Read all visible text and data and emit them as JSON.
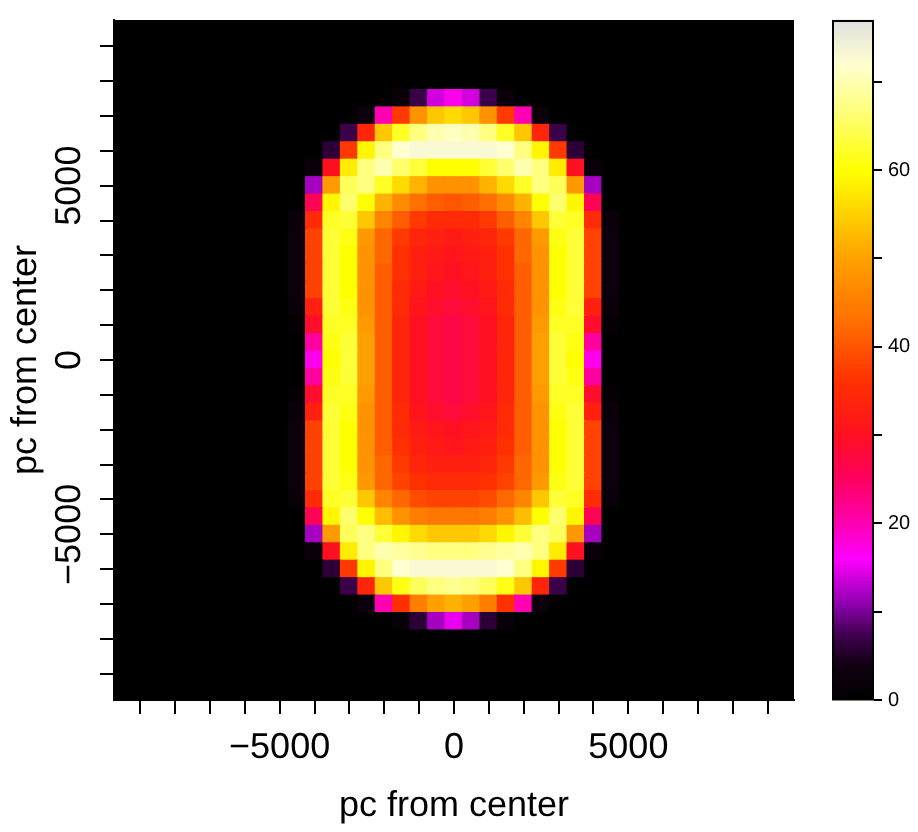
{
  "chart_data": {
    "type": "heatmap",
    "xlabel": "pc from center",
    "ylabel": "pc from center",
    "categories": [
      null,
      null,
      null,
      null,
      null,
      null,
      null,
      null,
      null,
      "−5000",
      null,
      null,
      null,
      null,
      null,
      null,
      null,
      null,
      null,
      "0",
      null,
      null,
      null,
      null,
      null,
      null,
      null,
      null,
      null,
      "5000",
      null,
      null,
      null,
      null,
      null,
      null,
      null,
      null,
      null
    ],
    "y_categories": [
      null,
      null,
      null,
      null,
      null,
      null,
      null,
      null,
      null,
      "5000",
      null,
      null,
      null,
      null,
      null,
      null,
      null,
      null,
      null,
      "0",
      null,
      null,
      null,
      null,
      null,
      null,
      null,
      null,
      null,
      "−5000",
      null,
      null,
      null,
      null,
      null,
      null,
      null,
      null,
      null
    ],
    "clim": [
      0,
      77
    ],
    "cticks": [
      0,
      {
        "value": 10,
        "label": null
      },
      20,
      {
        "value": 30,
        "label": null
      },
      40,
      {
        "value": 50,
        "label": null
      },
      60,
      {
        "value": 70,
        "label": null
      }
    ],
    "cells": [
      [
        0,
        0,
        0,
        0,
        0,
        0,
        0,
        0,
        0,
        0,
        0,
        0,
        0,
        0,
        0,
        0,
        0,
        0,
        0,
        0,
        0,
        0,
        0,
        0,
        0,
        0,
        0,
        0,
        0,
        0,
        0,
        0,
        0,
        0,
        0,
        0,
        0,
        0,
        0
      ],
      [
        0,
        0,
        0,
        0,
        0,
        0,
        0,
        0,
        0,
        0,
        0,
        0,
        0,
        0,
        0,
        0,
        0,
        0,
        0,
        0,
        0,
        0,
        0,
        0,
        0,
        0,
        0,
        0,
        0,
        0,
        0,
        0,
        0,
        0,
        0,
        0,
        0,
        0,
        0
      ],
      [
        0,
        0,
        0,
        0,
        0,
        0,
        0,
        0,
        0,
        0,
        0,
        0,
        0,
        0,
        0,
        0,
        0,
        0,
        0,
        0,
        0,
        0,
        0,
        0,
        0,
        0,
        0,
        0,
        0,
        0,
        0,
        0,
        0,
        0,
        0,
        0,
        0,
        0,
        0
      ],
      [
        0,
        0,
        0,
        0,
        0,
        0,
        0,
        0,
        0,
        0,
        0,
        0,
        0,
        0,
        0,
        0,
        0,
        0,
        0,
        0,
        0,
        0,
        0,
        0,
        0,
        0,
        0,
        0,
        0,
        0,
        0,
        0,
        0,
        0,
        0,
        0,
        0,
        0,
        0
      ],
      [
        0,
        0,
        0,
        0,
        0,
        0,
        0,
        0,
        0,
        0,
        0,
        0,
        0,
        0,
        0,
        0,
        2,
        7,
        14,
        17,
        14,
        7,
        2,
        0,
        0,
        0,
        0,
        0,
        0,
        0,
        0,
        0,
        0,
        0,
        0,
        0,
        0,
        0,
        0
      ],
      [
        0,
        0,
        0,
        0,
        0,
        0,
        0,
        0,
        0,
        0,
        0,
        0,
        0,
        0,
        3,
        20,
        37,
        48,
        54,
        56,
        54,
        48,
        37,
        20,
        3,
        0,
        0,
        0,
        0,
        0,
        0,
        0,
        0,
        0,
        0,
        0,
        0,
        0,
        0
      ],
      [
        0,
        0,
        0,
        0,
        0,
        0,
        0,
        0,
        0,
        0,
        0,
        0,
        0,
        7,
        34,
        54,
        62,
        67,
        70,
        71,
        70,
        67,
        62,
        54,
        34,
        7,
        0,
        0,
        0,
        0,
        0,
        0,
        0,
        0,
        0,
        0,
        0,
        0,
        0
      ],
      [
        0,
        0,
        0,
        0,
        0,
        0,
        0,
        0,
        0,
        0,
        0,
        0,
        6,
        37,
        59,
        67,
        72,
        73,
        73,
        73,
        73,
        73,
        72,
        67,
        59,
        37,
        6,
        0,
        0,
        0,
        0,
        0,
        0,
        0,
        0,
        0,
        0,
        0,
        0
      ],
      [
        0,
        0,
        0,
        0,
        0,
        0,
        0,
        0,
        0,
        0,
        0,
        2,
        30,
        58,
        67,
        70,
        66,
        63,
        60,
        60,
        60,
        63,
        66,
        70,
        67,
        58,
        30,
        2,
        0,
        0,
        0,
        0,
        0,
        0,
        0,
        0,
        0,
        0,
        0
      ],
      [
        0,
        0,
        0,
        0,
        0,
        0,
        0,
        0,
        0,
        0,
        0,
        12,
        49,
        65,
        67,
        62,
        56,
        52,
        48,
        48,
        48,
        52,
        56,
        62,
        67,
        65,
        49,
        12,
        0,
        0,
        0,
        0,
        0,
        0,
        0,
        0,
        0,
        0,
        0
      ],
      [
        0,
        0,
        0,
        0,
        0,
        0,
        0,
        0,
        0,
        0,
        0,
        26,
        59,
        66,
        60,
        52,
        47,
        43,
        41,
        40,
        41,
        43,
        47,
        52,
        60,
        66,
        59,
        26,
        0,
        0,
        0,
        0,
        0,
        0,
        0,
        0,
        0,
        0,
        0
      ],
      [
        0,
        0,
        0,
        0,
        0,
        0,
        0,
        0,
        0,
        0,
        2,
        35,
        62,
        63,
        54,
        46,
        41,
        37,
        35,
        35,
        35,
        37,
        41,
        46,
        54,
        63,
        62,
        35,
        2,
        0,
        0,
        0,
        0,
        0,
        0,
        0,
        0,
        0,
        0
      ],
      [
        0,
        0,
        0,
        0,
        0,
        0,
        0,
        0,
        0,
        0,
        3,
        38,
        63,
        61,
        49,
        42,
        37,
        34,
        33,
        32,
        33,
        34,
        37,
        42,
        49,
        61,
        63,
        38,
        3,
        0,
        0,
        0,
        0,
        0,
        0,
        0,
        0,
        0,
        0
      ],
      [
        0,
        0,
        0,
        0,
        0,
        0,
        0,
        0,
        0,
        0,
        3,
        38,
        63,
        60,
        48,
        42,
        36,
        33,
        32,
        31,
        32,
        33,
        36,
        42,
        48,
        60,
        63,
        38,
        3,
        0,
        0,
        0,
        0,
        0,
        0,
        0,
        0,
        0,
        0
      ],
      [
        0,
        0,
        0,
        0,
        0,
        0,
        0,
        0,
        0,
        0,
        3,
        38,
        63,
        60,
        48,
        41,
        36,
        33,
        31,
        30,
        31,
        33,
        36,
        41,
        48,
        60,
        63,
        38,
        3,
        0,
        0,
        0,
        0,
        0,
        0,
        0,
        0,
        0,
        0
      ],
      [
        0,
        0,
        0,
        0,
        0,
        0,
        0,
        0,
        0,
        0,
        3,
        38,
        63,
        60,
        48,
        41,
        35,
        32,
        30,
        29,
        30,
        32,
        35,
        41,
        48,
        60,
        63,
        38,
        3,
        0,
        0,
        0,
        0,
        0,
        0,
        0,
        0,
        0,
        0
      ],
      [
        0,
        0,
        0,
        0,
        0,
        0,
        0,
        0,
        0,
        0,
        2,
        33,
        63,
        61,
        48,
        41,
        35,
        31,
        29,
        28,
        29,
        31,
        35,
        41,
        48,
        61,
        63,
        33,
        2,
        0,
        0,
        0,
        0,
        0,
        0,
        0,
        0,
        0,
        0
      ],
      [
        0,
        0,
        0,
        0,
        0,
        0,
        0,
        0,
        0,
        0,
        1,
        29,
        62,
        62,
        49,
        41,
        34,
        30,
        28,
        27,
        28,
        30,
        34,
        41,
        49,
        62,
        62,
        29,
        1,
        0,
        0,
        0,
        0,
        0,
        0,
        0,
        0,
        0,
        0
      ],
      [
        0,
        0,
        0,
        0,
        0,
        0,
        0,
        0,
        0,
        0,
        0,
        21,
        61,
        63,
        50,
        41,
        34,
        30,
        28,
        27,
        28,
        30,
        34,
        41,
        50,
        63,
        61,
        21,
        0,
        0,
        0,
        0,
        0,
        0,
        0,
        0,
        0,
        0,
        0
      ],
      [
        0,
        0,
        0,
        0,
        0,
        0,
        0,
        0,
        0,
        0,
        0,
        17,
        60,
        63,
        50,
        41,
        34,
        30,
        28,
        27,
        28,
        30,
        34,
        41,
        50,
        63,
        60,
        17,
        0,
        0,
        0,
        0,
        0,
        0,
        0,
        0,
        0,
        0,
        0
      ],
      [
        0,
        0,
        0,
        0,
        0,
        0,
        0,
        0,
        0,
        0,
        0,
        21,
        61,
        63,
        50,
        41,
        34,
        30,
        28,
        27,
        28,
        30,
        34,
        41,
        50,
        63,
        61,
        21,
        0,
        0,
        0,
        0,
        0,
        0,
        0,
        0,
        0,
        0,
        0
      ],
      [
        0,
        0,
        0,
        0,
        0,
        0,
        0,
        0,
        0,
        0,
        1,
        29,
        62,
        62,
        49,
        41,
        34,
        30,
        28,
        27,
        28,
        30,
        34,
        41,
        49,
        62,
        62,
        29,
        1,
        0,
        0,
        0,
        0,
        0,
        0,
        0,
        0,
        0,
        0
      ],
      [
        0,
        0,
        0,
        0,
        0,
        0,
        0,
        0,
        0,
        0,
        2,
        33,
        63,
        61,
        48,
        41,
        35,
        31,
        29,
        28,
        29,
        31,
        35,
        41,
        48,
        61,
        63,
        33,
        2,
        0,
        0,
        0,
        0,
        0,
        0,
        0,
        0,
        0,
        0
      ],
      [
        0,
        0,
        0,
        0,
        0,
        0,
        0,
        0,
        0,
        0,
        3,
        38,
        63,
        60,
        48,
        41,
        35,
        32,
        31,
        30,
        31,
        32,
        35,
        41,
        48,
        60,
        63,
        38,
        3,
        0,
        0,
        0,
        0,
        0,
        0,
        0,
        0,
        0,
        0
      ],
      [
        0,
        0,
        0,
        0,
        0,
        0,
        0,
        0,
        0,
        0,
        3,
        38,
        63,
        60,
        48,
        41,
        36,
        33,
        32,
        31,
        32,
        33,
        36,
        41,
        48,
        60,
        63,
        38,
        3,
        0,
        0,
        0,
        0,
        0,
        0,
        0,
        0,
        0,
        0
      ],
      [
        0,
        0,
        0,
        0,
        0,
        0,
        0,
        0,
        0,
        0,
        3,
        38,
        63,
        60,
        48,
        42,
        37,
        34,
        33,
        33,
        33,
        34,
        37,
        42,
        48,
        60,
        63,
        38,
        3,
        0,
        0,
        0,
        0,
        0,
        0,
        0,
        0,
        0,
        0
      ],
      [
        0,
        0,
        0,
        0,
        0,
        0,
        0,
        0,
        0,
        0,
        3,
        38,
        63,
        61,
        49,
        42,
        38,
        36,
        35,
        35,
        35,
        36,
        38,
        42,
        49,
        61,
        63,
        38,
        3,
        0,
        0,
        0,
        0,
        0,
        0,
        0,
        0,
        0,
        0
      ],
      [
        0,
        0,
        0,
        0,
        0,
        0,
        0,
        0,
        0,
        0,
        2,
        35,
        62,
        63,
        54,
        46,
        42,
        39,
        38,
        38,
        38,
        39,
        42,
        46,
        54,
        63,
        62,
        35,
        2,
        0,
        0,
        0,
        0,
        0,
        0,
        0,
        0,
        0,
        0
      ],
      [
        0,
        0,
        0,
        0,
        0,
        0,
        0,
        0,
        0,
        0,
        0,
        26,
        59,
        66,
        60,
        53,
        48,
        45,
        44,
        44,
        44,
        45,
        48,
        53,
        60,
        66,
        59,
        26,
        0,
        0,
        0,
        0,
        0,
        0,
        0,
        0,
        0,
        0,
        0
      ],
      [
        0,
        0,
        0,
        0,
        0,
        0,
        0,
        0,
        0,
        0,
        0,
        12,
        49,
        65,
        67,
        63,
        59,
        56,
        54,
        54,
        54,
        56,
        59,
        63,
        67,
        65,
        49,
        12,
        0,
        0,
        0,
        0,
        0,
        0,
        0,
        0,
        0,
        0,
        0
      ],
      [
        0,
        0,
        0,
        0,
        0,
        0,
        0,
        0,
        0,
        0,
        0,
        2,
        30,
        58,
        67,
        70,
        69,
        68,
        67,
        67,
        67,
        68,
        69,
        70,
        67,
        58,
        30,
        2,
        0,
        0,
        0,
        0,
        0,
        0,
        0,
        0,
        0,
        0,
        0
      ],
      [
        0,
        0,
        0,
        0,
        0,
        0,
        0,
        0,
        0,
        0,
        0,
        0,
        6,
        37,
        59,
        67,
        72,
        73,
        73,
        73,
        73,
        73,
        72,
        67,
        59,
        37,
        6,
        0,
        0,
        0,
        0,
        0,
        0,
        0,
        0,
        0,
        0,
        0,
        0
      ],
      [
        0,
        0,
        0,
        0,
        0,
        0,
        0,
        0,
        0,
        0,
        0,
        0,
        0,
        7,
        34,
        54,
        61,
        65,
        67,
        68,
        67,
        65,
        61,
        54,
        34,
        7,
        0,
        0,
        0,
        0,
        0,
        0,
        0,
        0,
        0,
        0,
        0,
        0,
        0
      ],
      [
        0,
        0,
        0,
        0,
        0,
        0,
        0,
        0,
        0,
        0,
        0,
        0,
        0,
        0,
        3,
        20,
        36,
        45,
        50,
        52,
        50,
        45,
        36,
        20,
        3,
        0,
        0,
        0,
        0,
        0,
        0,
        0,
        0,
        0,
        0,
        0,
        0,
        0,
        0
      ],
      [
        0,
        0,
        0,
        0,
        0,
        0,
        0,
        0,
        0,
        0,
        0,
        0,
        0,
        0,
        0,
        0,
        2,
        6,
        12,
        15,
        12,
        6,
        2,
        0,
        0,
        0,
        0,
        0,
        0,
        0,
        0,
        0,
        0,
        0,
        0,
        0,
        0,
        0,
        0
      ],
      [
        0,
        0,
        0,
        0,
        0,
        0,
        0,
        0,
        0,
        0,
        0,
        0,
        0,
        0,
        0,
        0,
        0,
        0,
        0,
        0,
        0,
        0,
        0,
        0,
        0,
        0,
        0,
        0,
        0,
        0,
        0,
        0,
        0,
        0,
        0,
        0,
        0,
        0,
        0
      ],
      [
        0,
        0,
        0,
        0,
        0,
        0,
        0,
        0,
        0,
        0,
        0,
        0,
        0,
        0,
        0,
        0,
        0,
        0,
        0,
        0,
        0,
        0,
        0,
        0,
        0,
        0,
        0,
        0,
        0,
        0,
        0,
        0,
        0,
        0,
        0,
        0,
        0,
        0,
        0
      ],
      [
        0,
        0,
        0,
        0,
        0,
        0,
        0,
        0,
        0,
        0,
        0,
        0,
        0,
        0,
        0,
        0,
        0,
        0,
        0,
        0,
        0,
        0,
        0,
        0,
        0,
        0,
        0,
        0,
        0,
        0,
        0,
        0,
        0,
        0,
        0,
        0,
        0,
        0,
        0
      ],
      [
        0,
        0,
        0,
        0,
        0,
        0,
        0,
        0,
        0,
        0,
        0,
        0,
        0,
        0,
        0,
        0,
        0,
        0,
        0,
        0,
        0,
        0,
        0,
        0,
        0,
        0,
        0,
        0,
        0,
        0,
        0,
        0,
        0,
        0,
        0,
        0,
        0,
        0,
        0
      ]
    ]
  }
}
